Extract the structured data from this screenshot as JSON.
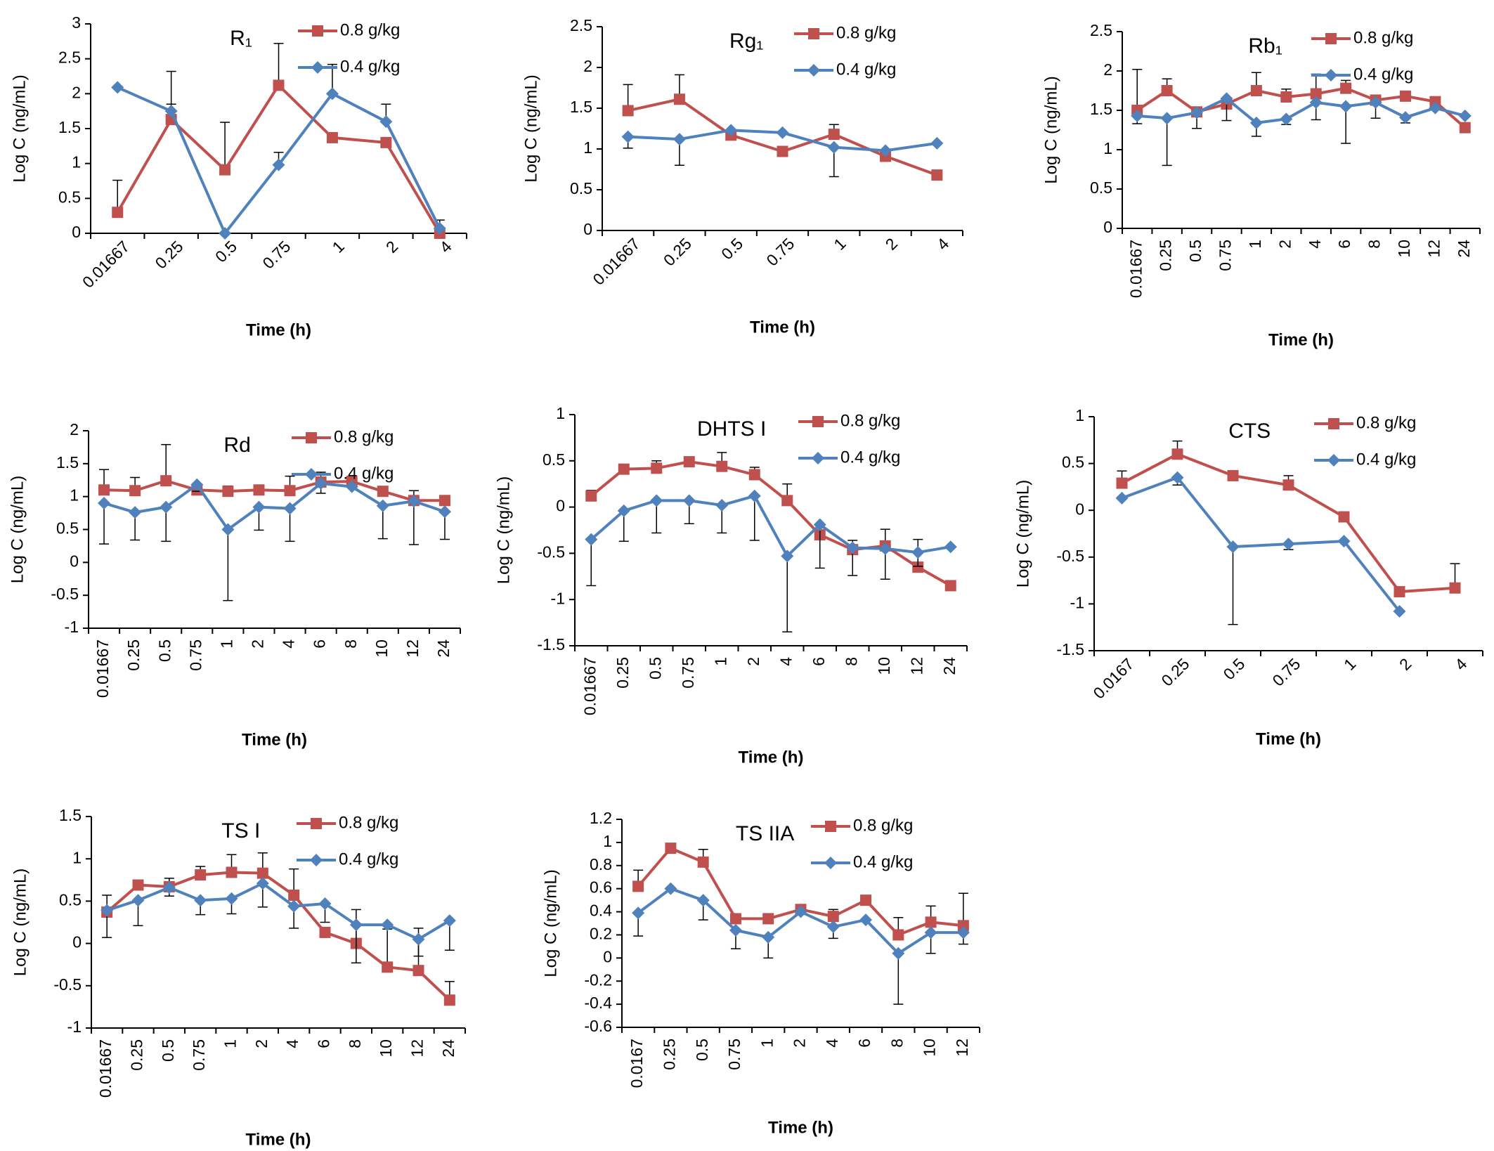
{
  "chart_data": [
    {
      "type": "line",
      "title": "R₁",
      "xlabel": "Time (h)",
      "ylabel": "Log C (ng/mL)",
      "categories": [
        "0.01667",
        "0.25",
        "0.5",
        "0.75",
        "1",
        "2",
        "4"
      ],
      "ylim": [
        0,
        3
      ],
      "yticks": [
        0,
        0.5,
        1,
        1.5,
        2,
        2.5,
        3
      ],
      "series": [
        {
          "name": "0.8 g/kg",
          "color": "#c0504d",
          "marker": "square",
          "error_direction": "up",
          "values": [
            0.3,
            1.63,
            0.91,
            2.12,
            1.37,
            1.3,
            0.0
          ],
          "errors": [
            0.46,
            0.69,
            0.68,
            0.6,
            null,
            null,
            null
          ]
        },
        {
          "name": "0.4 g/kg",
          "color": "#4f81bd",
          "marker": "diamond",
          "error_direction": "up",
          "values": [
            2.09,
            1.75,
            0,
            0.98,
            2.0,
            1.6,
            0.07
          ],
          "errors": [
            null,
            0.1,
            null,
            0.18,
            0.42,
            0.25,
            0.12
          ]
        }
      ]
    },
    {
      "type": "line",
      "title": "Rg₁",
      "xlabel": "Time (h)",
      "ylabel": "Log C (ng/mL)",
      "categories": [
        "0.01667",
        "0.25",
        "0.5",
        "0.75",
        "1",
        "2",
        "4"
      ],
      "ylim": [
        0,
        2.5
      ],
      "yticks": [
        0,
        0.5,
        1,
        1.5,
        2,
        2.5
      ],
      "series": [
        {
          "name": "0.8 g/kg",
          "color": "#c0504d",
          "marker": "square",
          "error_direction": "up",
          "values": [
            1.47,
            1.61,
            1.17,
            0.97,
            1.18,
            0.91,
            0.68
          ],
          "errors": [
            0.32,
            0.3,
            null,
            null,
            0.12,
            null,
            null
          ]
        },
        {
          "name": "0.4 g/kg",
          "color": "#4f81bd",
          "marker": "diamond",
          "error_direction": "down",
          "values": [
            1.15,
            1.12,
            1.23,
            1.2,
            1.02,
            0.98,
            1.07
          ],
          "errors": [
            0.14,
            0.32,
            null,
            null,
            0.36,
            null,
            null
          ]
        }
      ]
    },
    {
      "type": "line",
      "title": "Rb₁",
      "xlabel": "Time (h)",
      "ylabel": "Log C (ng/mL)",
      "categories": [
        "0.01667",
        "0.25",
        "0.5",
        "0.75",
        "1",
        "2",
        "4",
        "6",
        "8",
        "10",
        "12",
        "24"
      ],
      "ylim": [
        0,
        2.5
      ],
      "yticks": [
        0,
        0.5,
        1,
        1.5,
        2,
        2.5
      ],
      "series": [
        {
          "name": "0.8 g/kg",
          "color": "#c0504d",
          "marker": "square",
          "error_direction": "up",
          "values": [
            1.5,
            1.75,
            1.48,
            1.58,
            1.75,
            1.67,
            1.71,
            1.78,
            1.63,
            1.68,
            1.61,
            1.28
          ],
          "errors": [
            0.52,
            0.15,
            null,
            null,
            0.23,
            0.1,
            0.25,
            0.1,
            null,
            null,
            null,
            null
          ]
        },
        {
          "name": "0.4 g/kg",
          "color": "#4f81bd",
          "marker": "diamond",
          "error_direction": "down",
          "values": [
            1.43,
            1.4,
            1.47,
            1.65,
            1.34,
            1.39,
            1.6,
            1.55,
            1.6,
            1.41,
            1.53,
            1.43
          ],
          "errors": [
            0.1,
            0.6,
            0.2,
            0.28,
            0.17,
            0.07,
            0.22,
            0.47,
            0.2,
            0.07,
            null,
            null
          ]
        }
      ]
    },
    {
      "type": "line",
      "title": "Rd",
      "xlabel": "Time (h)",
      "ylabel": "Log C (ng/mL)",
      "categories": [
        "0.01667",
        "0.25",
        "0.5",
        "0.75",
        "1",
        "2",
        "4",
        "6",
        "8",
        "10",
        "12",
        "24"
      ],
      "ylim": [
        -1,
        2
      ],
      "yticks": [
        -1,
        -0.5,
        0,
        0.5,
        1,
        1.5,
        2
      ],
      "series": [
        {
          "name": "0.8 g/kg",
          "color": "#c0504d",
          "marker": "square",
          "error_direction": "up",
          "values": [
            1.1,
            1.09,
            1.24,
            1.1,
            1.08,
            1.1,
            1.09,
            1.22,
            1.23,
            1.08,
            0.94,
            0.94
          ],
          "errors": [
            0.31,
            0.2,
            0.55,
            null,
            0.08,
            null,
            0.22,
            0.15,
            null,
            null,
            0.15,
            null
          ]
        },
        {
          "name": "0.4 g/kg",
          "color": "#4f81bd",
          "marker": "diamond",
          "error_direction": "down",
          "values": [
            0.9,
            0.76,
            0.84,
            1.18,
            0.5,
            0.84,
            0.82,
            1.2,
            1.15,
            0.86,
            0.93,
            0.77
          ],
          "errors": [
            0.62,
            0.42,
            0.52,
            0.1,
            1.08,
            0.35,
            0.5,
            0.15,
            null,
            0.5,
            0.66,
            0.42
          ]
        }
      ]
    },
    {
      "type": "line",
      "title": "DHTS I",
      "xlabel": "Time (h)",
      "ylabel": "Log C (ng/mL)",
      "categories": [
        "0.01667",
        "0.25",
        "0.5",
        "0.75",
        "1",
        "2",
        "4",
        "6",
        "8",
        "10",
        "12",
        "24"
      ],
      "ylim": [
        -1.5,
        1
      ],
      "yticks": [
        -1.5,
        -1,
        -0.5,
        0,
        0.5,
        1
      ],
      "series": [
        {
          "name": "0.8 g/kg",
          "color": "#c0504d",
          "marker": "square",
          "error_direction": "up",
          "values": [
            0.12,
            0.41,
            0.42,
            0.49,
            0.44,
            0.35,
            0.07,
            -0.3,
            -0.46,
            -0.42,
            -0.65,
            -0.85
          ],
          "errors": [
            0.06,
            0.04,
            0.08,
            0.05,
            0.15,
            0.08,
            0.18,
            null,
            0.1,
            0.18,
            0.3,
            null
          ]
        },
        {
          "name": "0.4 g/kg",
          "color": "#4f81bd",
          "marker": "diamond",
          "error_direction": "down",
          "values": [
            -0.35,
            -0.04,
            0.07,
            0.07,
            0.02,
            0.12,
            -0.53,
            -0.19,
            -0.44,
            -0.45,
            -0.49,
            -0.43
          ],
          "errors": [
            0.5,
            0.33,
            0.35,
            0.25,
            0.3,
            0.48,
            0.82,
            0.47,
            0.3,
            0.33,
            0.15,
            null
          ]
        }
      ]
    },
    {
      "type": "line",
      "title": "CTS",
      "xlabel": "Time (h)",
      "ylabel": "Log C (ng/mL)",
      "categories": [
        "0.0167",
        "0.25",
        "0.5",
        "0.75",
        "1",
        "2",
        "4"
      ],
      "ylim": [
        -1.5,
        1
      ],
      "yticks": [
        -1.5,
        -1,
        -0.5,
        0,
        0.5,
        1
      ],
      "series": [
        {
          "name": "0.8 g/kg",
          "color": "#c0504d",
          "marker": "square",
          "error_direction": "up",
          "values": [
            0.29,
            0.6,
            0.37,
            0.27,
            -0.07,
            -0.87,
            -0.83
          ],
          "errors": [
            0.13,
            0.14,
            0.05,
            0.1,
            null,
            null,
            0.26
          ]
        },
        {
          "name": "0.4 g/kg",
          "color": "#4f81bd",
          "marker": "diamond",
          "error_direction": "down",
          "values": [
            0.13,
            0.35,
            -0.39,
            -0.36,
            -0.33,
            -1.08,
            null
          ],
          "errors": [
            null,
            0.08,
            0.83,
            0.06,
            null,
            null,
            null
          ]
        }
      ]
    },
    {
      "type": "line",
      "title": "TS I",
      "xlabel": "Time (h)",
      "ylabel": "Log C (ng/mL)",
      "categories": [
        "0.01667",
        "0.25",
        "0.5",
        "0.75",
        "1",
        "2",
        "4",
        "6",
        "8",
        "10",
        "12",
        "24"
      ],
      "ylim": [
        -1,
        1.5
      ],
      "yticks": [
        -1,
        -0.5,
        0,
        0.5,
        1,
        1.5
      ],
      "series": [
        {
          "name": "0.8 g/kg",
          "color": "#c0504d",
          "marker": "square",
          "error_direction": "up",
          "values": [
            0.37,
            0.69,
            0.67,
            0.81,
            0.84,
            0.83,
            0.57,
            0.13,
            0,
            -0.28,
            -0.32,
            -0.67
          ],
          "errors": [
            0.2,
            null,
            0.1,
            0.1,
            0.21,
            0.24,
            0.31,
            null,
            0.4,
            0.45,
            0.5,
            0.22
          ]
        },
        {
          "name": "0.4 g/kg",
          "color": "#4f81bd",
          "marker": "diamond",
          "error_direction": "down",
          "values": [
            0.39,
            0.51,
            0.66,
            0.51,
            0.53,
            0.71,
            0.44,
            0.47,
            0.22,
            0.22,
            0.05,
            0.27
          ],
          "errors": [
            0.32,
            0.3,
            0.1,
            0.17,
            0.18,
            0.28,
            0.26,
            0.22,
            0.45,
            null,
            0.2,
            0.35
          ]
        }
      ]
    },
    {
      "type": "line",
      "title": "TS IIA",
      "xlabel": "Time (h)",
      "ylabel": "Log C (ng/mL)",
      "categories": [
        "0.0167",
        "0.25",
        "0.5",
        "0.75",
        "1",
        "2",
        "4",
        "6",
        "8",
        "10",
        "12"
      ],
      "ylim": [
        -0.6,
        1.2
      ],
      "yticks": [
        -0.6,
        -0.4,
        -0.2,
        0,
        0.2,
        0.4,
        0.6,
        0.8,
        1,
        1.2
      ],
      "series": [
        {
          "name": "0.8 g/kg",
          "color": "#c0504d",
          "marker": "square",
          "error_direction": "up",
          "values": [
            0.62,
            0.95,
            0.83,
            0.34,
            0.34,
            0.42,
            0.36,
            0.5,
            0.2,
            0.31,
            0.28
          ],
          "errors": [
            0.14,
            null,
            0.11,
            null,
            null,
            null,
            0.06,
            null,
            0.15,
            0.14,
            0.28
          ]
        },
        {
          "name": "0.4 g/kg",
          "color": "#4f81bd",
          "marker": "diamond",
          "error_direction": "down",
          "values": [
            0.39,
            0.6,
            0.5,
            0.24,
            0.18,
            0.4,
            0.27,
            0.33,
            0.04,
            0.22,
            0.22
          ],
          "errors": [
            0.2,
            null,
            0.17,
            0.16,
            0.18,
            null,
            0.1,
            null,
            0.44,
            0.18,
            0.1
          ]
        }
      ]
    }
  ]
}
